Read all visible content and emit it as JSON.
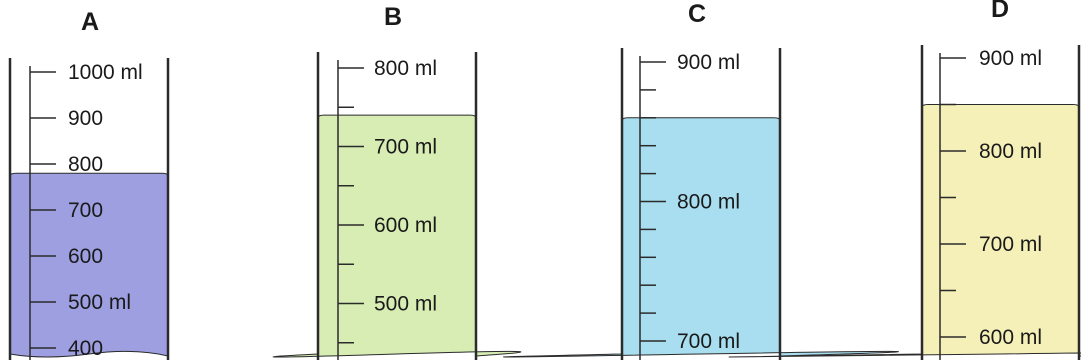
{
  "colors": {
    "outline": "#2b2b2b",
    "background": "#ffffff"
  },
  "cylinders": [
    {
      "id": "A",
      "label": "A",
      "liquid_color": "#9d9fe0",
      "liquid_level_ml": 780,
      "markings": [
        {
          "value_ml": 1000,
          "text": "1000 ml"
        },
        {
          "value_ml": 900,
          "text": "900"
        },
        {
          "value_ml": 800,
          "text": "800"
        },
        {
          "value_ml": 700,
          "text": "700"
        },
        {
          "value_ml": 600,
          "text": "600"
        },
        {
          "value_ml": 500,
          "text": "500 ml"
        },
        {
          "value_ml": 400,
          "text": "400"
        }
      ],
      "minor_ticks_ml": []
    },
    {
      "id": "B",
      "label": "B",
      "liquid_color": "#d7edb4",
      "liquid_level_ml": 740,
      "markings": [
        {
          "value_ml": 800,
          "text": "800 ml"
        },
        {
          "value_ml": 700,
          "text": "700 ml"
        },
        {
          "value_ml": 600,
          "text": "600 ml"
        },
        {
          "value_ml": 500,
          "text": "500 ml"
        }
      ],
      "minor_ticks_ml": [
        750,
        650,
        550,
        450
      ]
    },
    {
      "id": "C",
      "label": "C",
      "liquid_color": "#a8def0",
      "liquid_level_ml": 860,
      "markings": [
        {
          "value_ml": 900,
          "text": "900 ml"
        },
        {
          "value_ml": 800,
          "text": "800 ml"
        },
        {
          "value_ml": 700,
          "text": "700 ml"
        }
      ],
      "minor_ticks_ml": [
        880,
        860,
        840,
        820,
        780,
        760,
        740,
        720
      ]
    },
    {
      "id": "D",
      "label": "D",
      "liquid_color": "#f5f0b8",
      "liquid_level_ml": 850,
      "markings": [
        {
          "value_ml": 900,
          "text": "900 ml"
        },
        {
          "value_ml": 800,
          "text": "800 ml"
        },
        {
          "value_ml": 700,
          "text": "700 ml"
        },
        {
          "value_ml": 600,
          "text": "600 ml"
        }
      ],
      "minor_ticks_ml": [
        850,
        750,
        650
      ]
    }
  ]
}
